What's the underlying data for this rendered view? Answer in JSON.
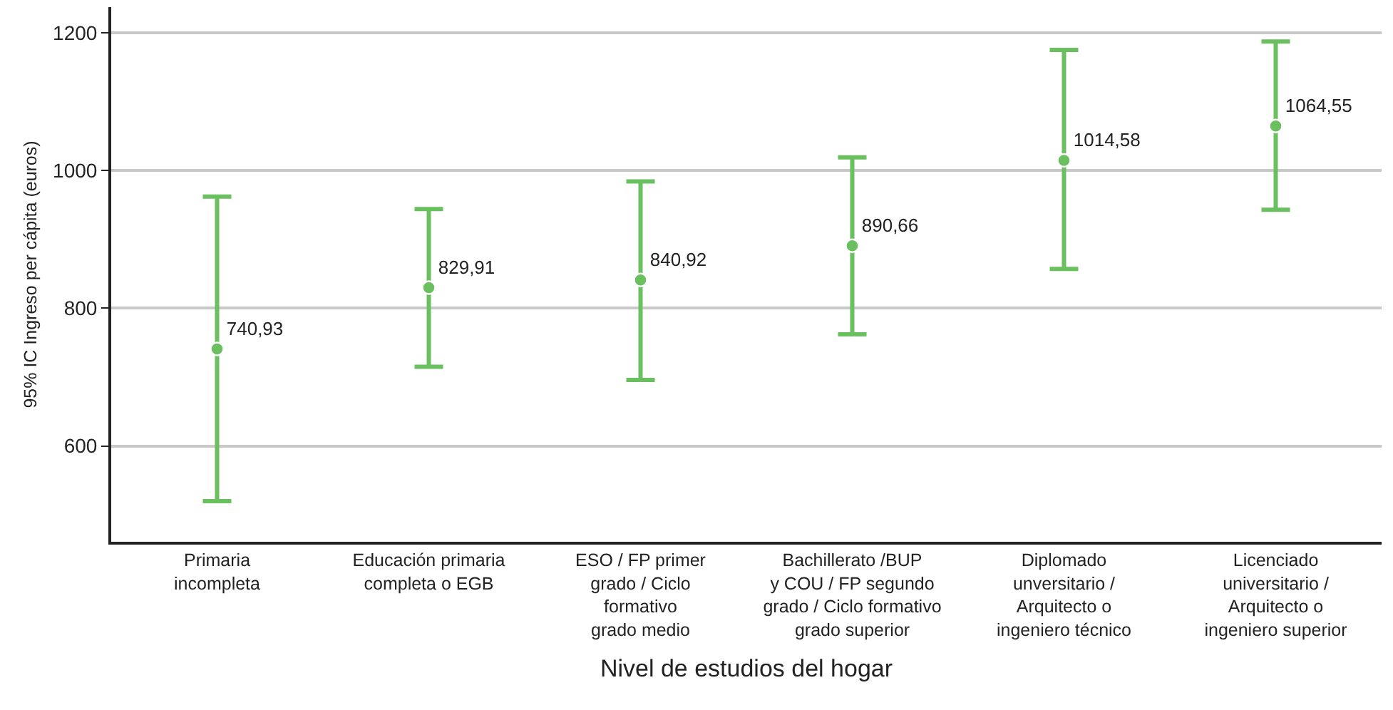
{
  "chart_data": {
    "type": "scatter",
    "xlabel": "Nivel de estudios del hogar",
    "ylabel": "95% IC Ingreso per cápita (euros)",
    "categories": [
      "Primaria\nincompleta",
      "Educación primaria\ncompleta o EGB",
      "ESO / FP primer\ngrado / Ciclo\nformativo\ngrado medio",
      "Bachillerato /BUP\ny COU / FP segundo\ngrado / Ciclo formativo\ngrado superior",
      "Diplomado\nunversitario /\nArquitecto o\ningeniero técnico",
      "Licenciado\nuniversitario /\nArquitecto o\ningeniero superior"
    ],
    "values": [
      740.93,
      829.91,
      840.92,
      890.66,
      1014.58,
      1064.55
    ],
    "value_labels": [
      "740,93",
      "829,91",
      "840,92",
      "890,66",
      "1014,58",
      "1064,55"
    ],
    "errors": [
      [
        520,
        962
      ],
      [
        715,
        944
      ],
      [
        696,
        984
      ],
      [
        762,
        1019
      ],
      [
        857,
        1175
      ],
      [
        943,
        1187
      ]
    ],
    "color": "#6abf5e",
    "ylim": [
      461,
      1237
    ],
    "yticks": [
      600,
      800,
      1000,
      1200
    ],
    "grid": "y",
    "marker": "circle"
  }
}
